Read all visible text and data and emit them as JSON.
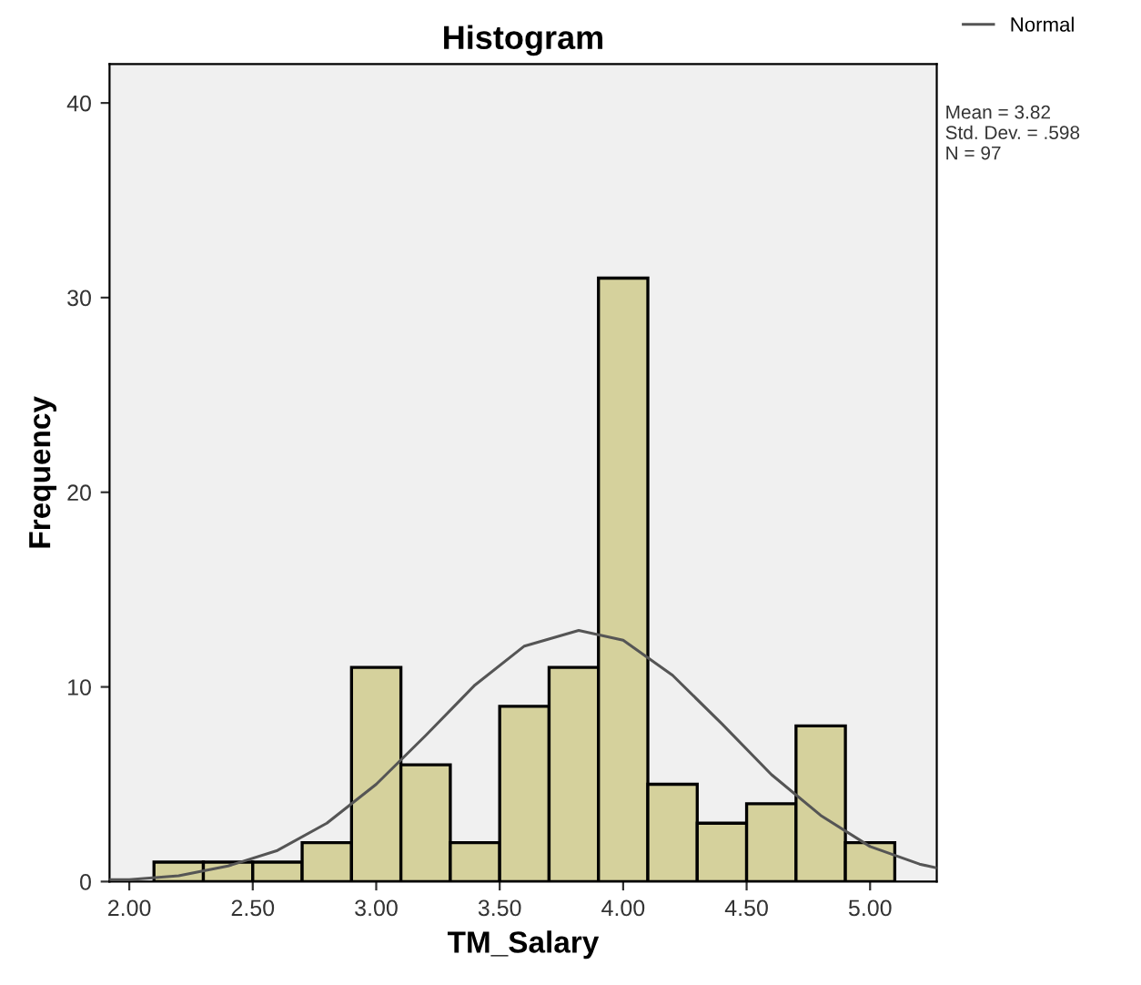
{
  "chart_data": {
    "type": "histogram",
    "title": "Histogram",
    "xlabel": "TM_Salary",
    "ylabel": "Frequency",
    "bins": [
      2.1,
      2.3,
      2.5,
      2.7,
      2.9,
      3.1,
      3.3,
      3.5,
      3.7,
      3.9,
      4.1,
      4.3,
      4.5,
      4.7,
      4.9,
      5.1
    ],
    "values": [
      1,
      1,
      1,
      2,
      11,
      6,
      2,
      9,
      11,
      31,
      5,
      3,
      4,
      8,
      2
    ],
    "color": "#d5d19c",
    "series": [
      {
        "name": "Normal",
        "type": "line",
        "color": "#555555",
        "x": [
          1.92,
          2.0,
          2.2,
          2.4,
          2.6,
          2.8,
          3.0,
          3.2,
          3.4,
          3.6,
          3.82,
          4.0,
          4.2,
          4.4,
          4.6,
          4.8,
          5.0,
          5.2,
          5.27
        ],
        "values": [
          0.1,
          0.1,
          0.3,
          0.8,
          1.6,
          3.0,
          5.0,
          7.5,
          10.1,
          12.1,
          12.9,
          12.4,
          10.6,
          8.1,
          5.5,
          3.4,
          1.8,
          0.9,
          0.7
        ]
      }
    ],
    "xlim": [
      1.92,
      5.27
    ],
    "ylim": [
      0,
      42
    ],
    "xticks": [
      {
        "value": 2.0,
        "label": "2.00"
      },
      {
        "value": 2.5,
        "label": "2.50"
      },
      {
        "value": 3.0,
        "label": "3.00"
      },
      {
        "value": 3.5,
        "label": "3.50"
      },
      {
        "value": 4.0,
        "label": "4.00"
      },
      {
        "value": 4.5,
        "label": "4.50"
      },
      {
        "value": 5.0,
        "label": "5.00"
      }
    ],
    "yticks": [
      0,
      10,
      20,
      30,
      40
    ],
    "annotations": [
      "Mean = 3.82\nStd. Dev. = .598\nN = 97"
    ],
    "legend": "top right",
    "grid": false
  }
}
